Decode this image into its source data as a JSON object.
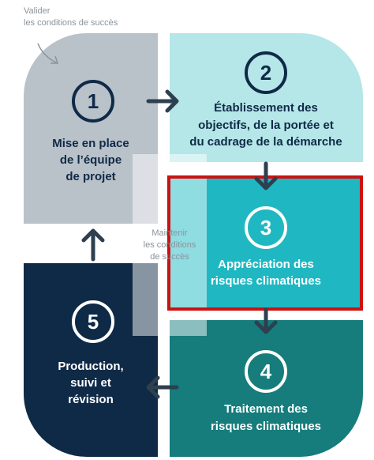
{
  "outer_note": {
    "lines": [
      "Valider",
      "les conditions de succès"
    ]
  },
  "inner_note": {
    "lines": [
      "Maintenir",
      "les conditions",
      "de succès"
    ]
  },
  "steps": [
    {
      "number": "1",
      "lines": [
        "Mise en place",
        "de l’équipe",
        "de projet"
      ]
    },
    {
      "number": "2",
      "lines": [
        "Établissement des",
        "objectifs, de la portée et",
        "du cadrage de la démarche"
      ]
    },
    {
      "number": "3",
      "lines": [
        "Appréciation des",
        "risques climatiques"
      ]
    },
    {
      "number": "4",
      "lines": [
        "Traitement des",
        "risques climatiques"
      ]
    },
    {
      "number": "5",
      "lines": [
        "Production,",
        "suivi et",
        "révision"
      ]
    }
  ]
}
